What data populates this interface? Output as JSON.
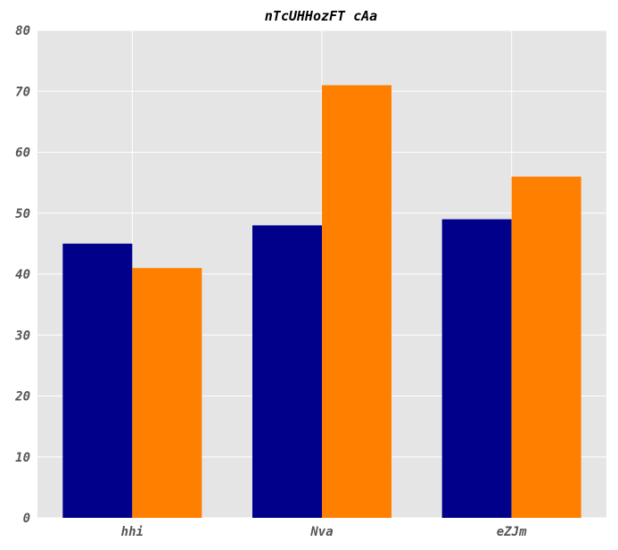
{
  "chart_data": {
    "type": "bar",
    "title": "nTcUHHozFT cAa",
    "xlabel": "",
    "ylabel": "",
    "categories": [
      "hhi",
      "Nva",
      "eZJm"
    ],
    "series": [
      {
        "values": [
          45,
          48,
          49
        ],
        "color": "#00008b"
      },
      {
        "values": [
          41,
          71,
          56
        ],
        "color": "#ff8000"
      }
    ],
    "ylim": [
      0,
      80
    ],
    "yticks": [
      0,
      10,
      20,
      30,
      40,
      50,
      60,
      70,
      80
    ],
    "grid": true,
    "legend": "none",
    "background_color": "#e5e5e5",
    "grid_color": "#ffffff"
  }
}
